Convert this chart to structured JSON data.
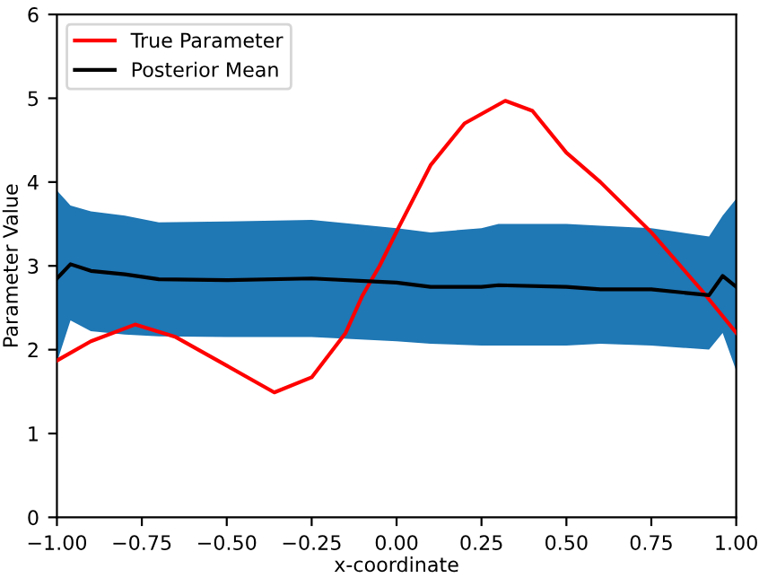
{
  "chart_data": {
    "type": "line",
    "xlabel": "x-coordinate",
    "ylabel": "Parameter Value",
    "xlim": [
      -1.0,
      1.0
    ],
    "xticks": [
      {
        "value": -1,
        "label": "−1.00"
      },
      {
        "value": -0.75,
        "label": "−0.75"
      },
      {
        "value": -0.5,
        "label": "−0.50"
      },
      {
        "value": -0.25,
        "label": "−0.25"
      },
      {
        "value": 0,
        "label": "0.00"
      },
      {
        "value": 0.25,
        "label": "0.25"
      },
      {
        "value": 0.5,
        "label": "0.50"
      },
      {
        "value": 0.75,
        "label": "0.75"
      },
      {
        "value": 1,
        "label": "1.00"
      }
    ],
    "ylim": [
      0,
      6
    ],
    "yticks": [
      0,
      1,
      2,
      3,
      4,
      5,
      6
    ],
    "grid": false,
    "legend": "top left",
    "line_style": "solid",
    "marker": "none",
    "series": [
      {
        "name": "True Parameter",
        "color": "#ff0000",
        "x": [
          -1,
          -0.9,
          -0.77,
          -0.65,
          -0.5,
          -0.36,
          -0.25,
          -0.15,
          -0.1,
          -0.05,
          0,
          0.1,
          0.2,
          0.32,
          0.4,
          0.5,
          0.6,
          0.75,
          0.9,
          1
        ],
        "values": [
          1.87,
          2.1,
          2.3,
          2.15,
          1.81,
          1.49,
          1.67,
          2.2,
          2.65,
          3.0,
          3.41,
          4.2,
          4.7,
          4.97,
          4.85,
          4.35,
          4.0,
          3.4,
          2.7,
          2.2
        ]
      },
      {
        "name": "Posterior Mean",
        "color": "#000000",
        "x": [
          -1,
          -0.96,
          -0.9,
          -0.8,
          -0.7,
          -0.5,
          -0.25,
          0,
          0.1,
          0.25,
          0.3,
          0.5,
          0.6,
          0.75,
          0.92,
          0.96,
          1
        ],
        "values": [
          2.85,
          3.02,
          2.94,
          2.9,
          2.84,
          2.83,
          2.85,
          2.8,
          2.75,
          2.75,
          2.77,
          2.75,
          2.72,
          2.72,
          2.65,
          2.88,
          2.75
        ],
        "upper": [
          3.9,
          3.72,
          3.65,
          3.6,
          3.52,
          3.53,
          3.55,
          3.45,
          3.4,
          3.45,
          3.5,
          3.5,
          3.48,
          3.45,
          3.35,
          3.6,
          3.8
        ],
        "lower": [
          1.85,
          2.35,
          2.22,
          2.18,
          2.16,
          2.15,
          2.15,
          2.1,
          2.07,
          2.05,
          2.05,
          2.05,
          2.07,
          2.05,
          2.0,
          2.2,
          1.75
        ]
      }
    ]
  }
}
